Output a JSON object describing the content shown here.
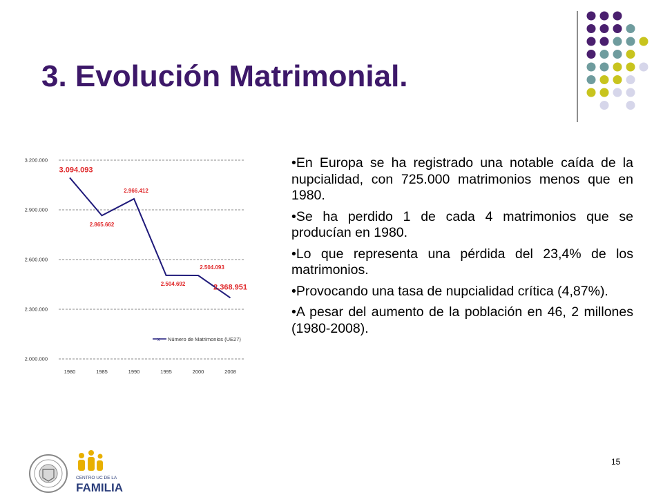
{
  "slide": {
    "title": "3. Evolución Matrimonial.",
    "page_number": "15",
    "bullets": [
      "•En Europa se ha registrado una notable caída de la nupcialidad, con 725.000 matrimonios menos que en 1980.",
      "•Se ha perdido 1 de cada 4 matrimonios que se producían en 1980.",
      "•Lo que representa una pérdida del 23,4% de los matrimonios.",
      "•Provocando una tasa de nupcialidad crítica (4,87%).",
      "•A pesar del aumento de la población en 46, 2 millones (1980-2008)."
    ],
    "logo_text": {
      "line1": "CENTRO UC DE LA",
      "line2": "FAMILIA"
    },
    "colors": {
      "title": "#3d1869",
      "purple": "#4a1f6e",
      "teal": "#6f9c9e",
      "olive": "#c8c41e",
      "lavender": "#d6d6ea",
      "line": "#1f1a7a",
      "label": "#e0292b"
    }
  },
  "chart_data": {
    "type": "line",
    "categories": [
      "1980",
      "1985",
      "1990",
      "1995",
      "2000",
      "2008"
    ],
    "values": [
      3094093,
      2865662,
      2966412,
      2504692,
      2504093,
      2368951
    ],
    "data_labels": [
      "3.094.093",
      "2.865.662",
      "2.966.412",
      "2.504.692",
      "2.504.093",
      "2.368.951"
    ],
    "yticks": [
      "3.200.000",
      "2.900.000",
      "2.600.000",
      "2.300.000",
      "2.000.000"
    ],
    "ylim": [
      2000000,
      3200000
    ],
    "legend": "Número de Matrimonios (UE27)",
    "grid": true
  }
}
